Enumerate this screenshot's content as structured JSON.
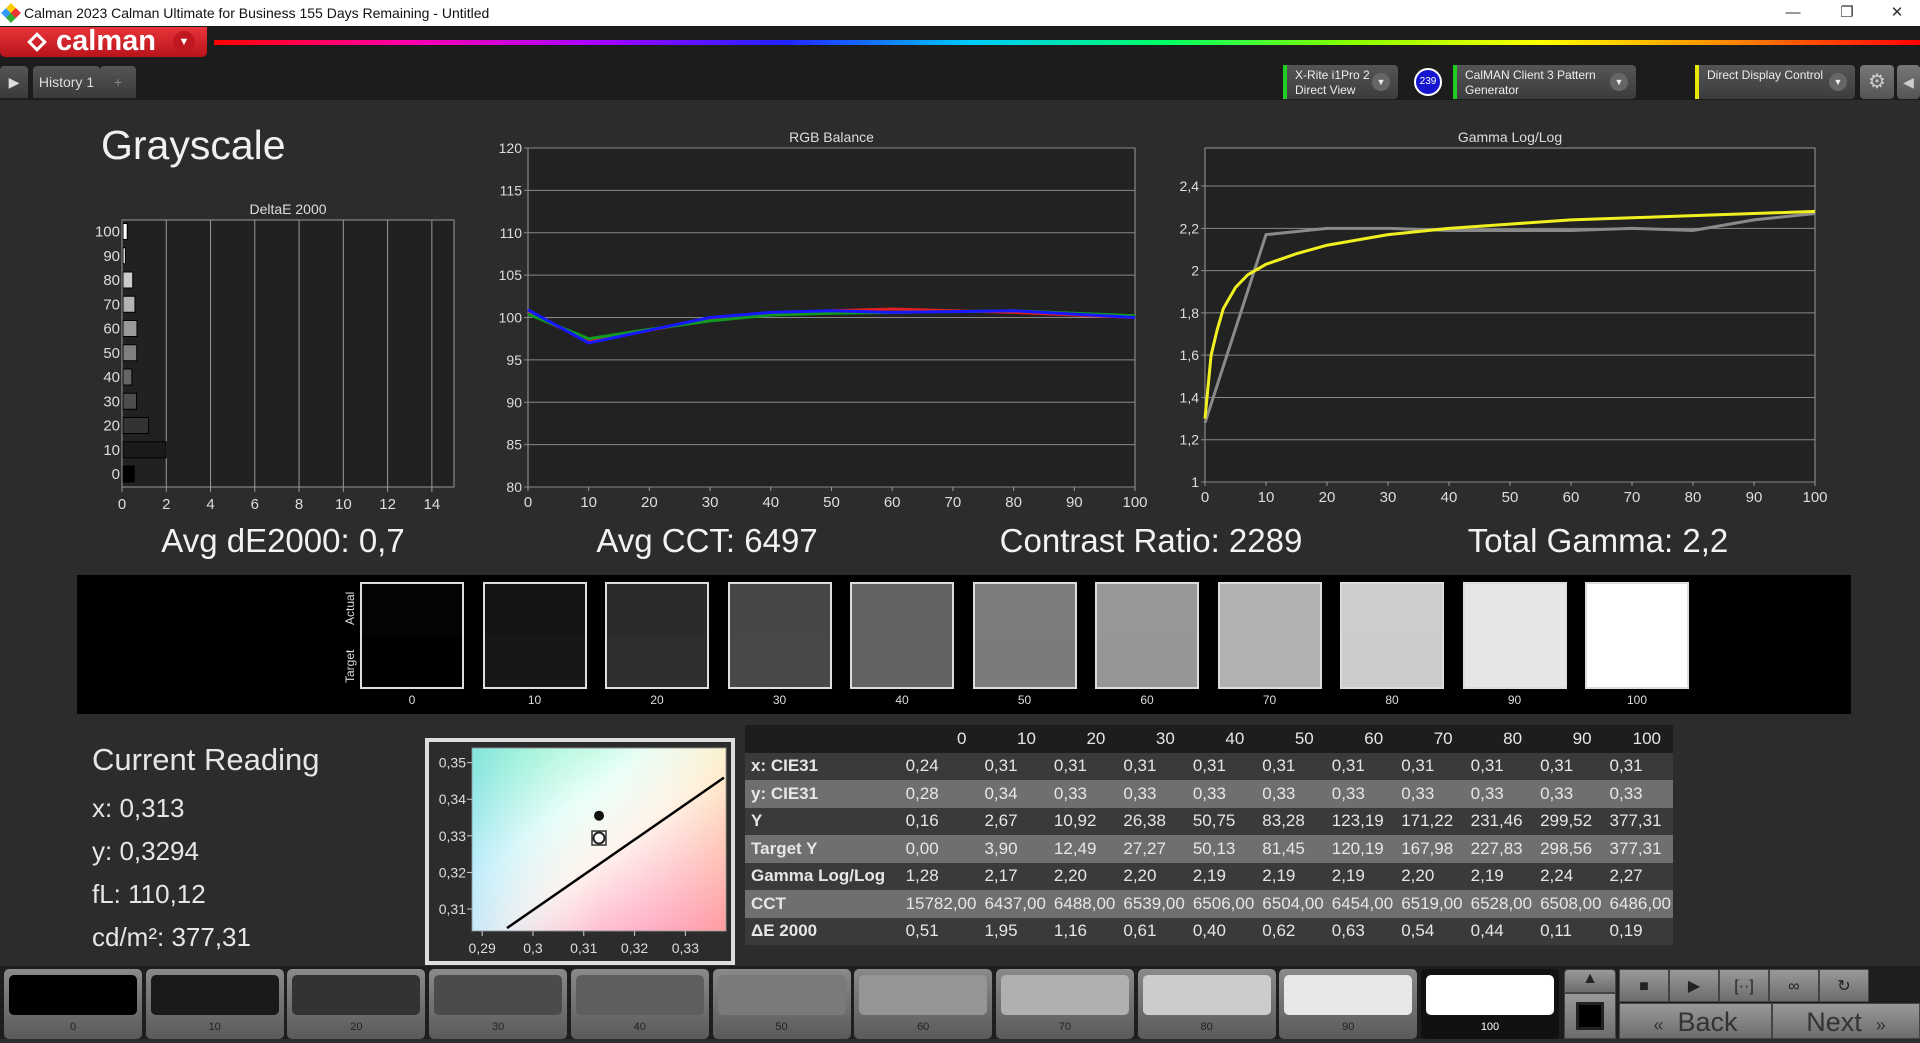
{
  "window": {
    "title": "Calman 2023 Calman Ultimate for Business 155 Days Remaining  - Untitled",
    "minimize": "—",
    "restore": "❐",
    "close": "✕"
  },
  "brand": {
    "name": "calman"
  },
  "tabs": {
    "items": [
      {
        "label": "History 1"
      }
    ],
    "add_label": "+"
  },
  "devices": {
    "meter": {
      "line1": "X-Rite i1Pro 2",
      "line2": "Direct View",
      "color": "#22cc22",
      "badge": "239"
    },
    "source": {
      "line1": "CalMAN Client 3 Pattern Generator",
      "color": "#22cc22"
    },
    "display": {
      "line1": "Direct Display Control",
      "color": "#e8e800"
    }
  },
  "page": {
    "title": "Grayscale"
  },
  "stats": {
    "avg_de": "Avg dE2000: 0,7",
    "avg_cct": "Avg CCT: 6497",
    "contrast": "Contrast Ratio: 2289",
    "gamma": "Total Gamma: 2,2"
  },
  "chart_data": [
    {
      "type": "bar",
      "orientation": "horizontal",
      "title": "DeltaE 2000",
      "categories": [
        "0",
        "10",
        "20",
        "30",
        "40",
        "50",
        "60",
        "70",
        "80",
        "90",
        "100"
      ],
      "values": [
        0.51,
        1.95,
        1.16,
        0.61,
        0.4,
        0.62,
        0.63,
        0.54,
        0.44,
        0.11,
        0.19
      ],
      "xlim": [
        0,
        15
      ],
      "xticks": [
        "0",
        "2",
        "4",
        "6",
        "8",
        "10",
        "12",
        "14"
      ],
      "grid": true
    },
    {
      "type": "line",
      "title": "RGB Balance",
      "x": [
        0,
        10,
        20,
        30,
        40,
        50,
        60,
        70,
        80,
        90,
        100
      ],
      "ylim": [
        80,
        120
      ],
      "xlim": [
        0,
        100
      ],
      "yticks": [
        "80",
        "85",
        "90",
        "95",
        "100",
        "105",
        "110",
        "115",
        "120"
      ],
      "xticks": [
        "0",
        "10",
        "20",
        "30",
        "40",
        "50",
        "60",
        "70",
        "80",
        "90",
        "100"
      ],
      "grid": true,
      "series": [
        {
          "color": "#e02020",
          "values": [
            100.5,
            97.3,
            98.5,
            99.8,
            100.5,
            100.8,
            101.0,
            100.8,
            100.6,
            100.3,
            100.0
          ]
        },
        {
          "color": "#109a20",
          "values": [
            100.4,
            97.5,
            98.6,
            99.6,
            100.3,
            100.5,
            100.6,
            100.7,
            100.8,
            100.5,
            100.2
          ]
        },
        {
          "color": "#1818ff",
          "values": [
            100.9,
            97.0,
            98.5,
            100.0,
            100.6,
            100.8,
            100.6,
            100.7,
            100.8,
            100.4,
            100.0
          ]
        }
      ]
    },
    {
      "type": "line",
      "title": "Gamma Log/Log",
      "xlim": [
        0,
        100
      ],
      "ylim": [
        1,
        2.58
      ],
      "yticks": [
        {
          "v": 1,
          "l": "1"
        },
        {
          "v": 1.2,
          "l": "1,2"
        },
        {
          "v": 1.4,
          "l": "1,4"
        },
        {
          "v": 1.6,
          "l": "1,6"
        },
        {
          "v": 1.8,
          "l": "1,8"
        },
        {
          "v": 2,
          "l": "2"
        },
        {
          "v": 2.2,
          "l": "2,2"
        },
        {
          "v": 2.4,
          "l": "2,4"
        }
      ],
      "xticks": [
        "0",
        "10",
        "20",
        "30",
        "40",
        "50",
        "60",
        "70",
        "80",
        "90",
        "100"
      ],
      "grid": true,
      "series": [
        {
          "color": "#8a8a8a",
          "x": [
            0,
            10,
            20,
            30,
            40,
            50,
            60,
            70,
            80,
            90,
            100
          ],
          "values": [
            1.28,
            2.17,
            2.2,
            2.2,
            2.19,
            2.19,
            2.19,
            2.2,
            2.19,
            2.24,
            2.27
          ]
        },
        {
          "color": "#f0f020",
          "x": [
            0,
            1,
            2,
            3,
            5,
            7,
            10,
            15,
            20,
            30,
            40,
            50,
            60,
            70,
            80,
            90,
            100
          ],
          "values": [
            1.3,
            1.6,
            1.72,
            1.82,
            1.92,
            1.98,
            2.03,
            2.08,
            2.12,
            2.17,
            2.2,
            2.22,
            2.24,
            2.25,
            2.26,
            2.27,
            2.28
          ]
        }
      ]
    },
    {
      "type": "scatter",
      "title": "",
      "xlim": [
        0.288,
        0.338
      ],
      "ylim": [
        0.304,
        0.354
      ],
      "xticks": [
        {
          "v": 0.29,
          "l": "0,29"
        },
        {
          "v": 0.3,
          "l": "0,3"
        },
        {
          "v": 0.31,
          "l": "0,31"
        },
        {
          "v": 0.32,
          "l": "0,32"
        },
        {
          "v": 0.33,
          "l": "0,33"
        }
      ],
      "yticks": [
        {
          "v": 0.31,
          "l": "0,31"
        },
        {
          "v": 0.32,
          "l": "0,32"
        },
        {
          "v": 0.33,
          "l": "0,33"
        },
        {
          "v": 0.34,
          "l": "0,34"
        },
        {
          "v": 0.35,
          "l": "0,35"
        }
      ],
      "points": [
        {
          "x": 0.313,
          "y": 0.3355,
          "kind": "filled"
        },
        {
          "x": 0.313,
          "y": 0.3294,
          "kind": "current"
        }
      ],
      "locus": [
        [
          0.2949,
          0.3048
        ],
        [
          0.3376,
          0.3459
        ]
      ]
    }
  ],
  "patches": {
    "actual_label": "Actual",
    "target_label": "Target",
    "items": [
      {
        "label": "0",
        "actual": "#040404",
        "target": "#000000"
      },
      {
        "label": "10",
        "actual": "#141414",
        "target": "#171717"
      },
      {
        "label": "20",
        "actual": "#2b2b2b",
        "target": "#2e2e2e"
      },
      {
        "label": "30",
        "actual": "#474747",
        "target": "#484848"
      },
      {
        "label": "40",
        "actual": "#626262",
        "target": "#626262"
      },
      {
        "label": "50",
        "actual": "#7c7c7c",
        "target": "#7b7b7b"
      },
      {
        "label": "60",
        "actual": "#979797",
        "target": "#969696"
      },
      {
        "label": "70",
        "actual": "#b2b2b2",
        "target": "#b1b1b1"
      },
      {
        "label": "80",
        "actual": "#cdcdcd",
        "target": "#cccccc"
      },
      {
        "label": "90",
        "actual": "#e6e6e6",
        "target": "#e6e6e6"
      },
      {
        "label": "100",
        "actual": "#ffffff",
        "target": "#ffffff"
      }
    ]
  },
  "current": {
    "title": "Current Reading",
    "x": "x: 0,313",
    "y": "y: 0,3294",
    "fl": "fL: 110,12",
    "cdm2": "cd/m²: 377,31"
  },
  "table": {
    "headers": [
      "",
      "0",
      "10",
      "20",
      "30",
      "40",
      "50",
      "60",
      "70",
      "80",
      "90",
      "100"
    ],
    "rows": [
      {
        "label": "x: CIE31",
        "values": [
          "0,24",
          "0,31",
          "0,31",
          "0,31",
          "0,31",
          "0,31",
          "0,31",
          "0,31",
          "0,31",
          "0,31",
          "0,31"
        ]
      },
      {
        "label": "y: CIE31",
        "values": [
          "0,28",
          "0,34",
          "0,33",
          "0,33",
          "0,33",
          "0,33",
          "0,33",
          "0,33",
          "0,33",
          "0,33",
          "0,33"
        ]
      },
      {
        "label": "Y",
        "values": [
          "0,16",
          "2,67",
          "10,92",
          "26,38",
          "50,75",
          "83,28",
          "123,19",
          "171,22",
          "231,46",
          "299,52",
          "377,31"
        ]
      },
      {
        "label": "Target Y",
        "values": [
          "0,00",
          "3,90",
          "12,49",
          "27,27",
          "50,13",
          "81,45",
          "120,19",
          "167,98",
          "227,83",
          "298,56",
          "377,31"
        ]
      },
      {
        "label": "Gamma Log/Log",
        "values": [
          "1,28",
          "2,17",
          "2,20",
          "2,20",
          "2,19",
          "2,19",
          "2,19",
          "2,20",
          "2,19",
          "2,24",
          "2,27"
        ]
      },
      {
        "label": "CCT",
        "values": [
          "15782,00",
          "6437,00",
          "6488,00",
          "6539,00",
          "6506,00",
          "6504,00",
          "6454,00",
          "6519,00",
          "6528,00",
          "6508,00",
          "6486,00"
        ]
      },
      {
        "label": "ΔE 2000",
        "values": [
          "0,51",
          "1,95",
          "1,16",
          "0,61",
          "0,40",
          "0,62",
          "0,63",
          "0,54",
          "0,44",
          "0,11",
          "0,19"
        ]
      }
    ]
  },
  "bottom": {
    "patch_buttons": [
      {
        "label": "0",
        "color": "#000000"
      },
      {
        "label": "10",
        "color": "#1a1a1a"
      },
      {
        "label": "20",
        "color": "#333333"
      },
      {
        "label": "30",
        "color": "#4b4b4b"
      },
      {
        "label": "40",
        "color": "#5e5e5e"
      },
      {
        "label": "50",
        "color": "#7a7a7a"
      },
      {
        "label": "60",
        "color": "#959595"
      },
      {
        "label": "70",
        "color": "#b0b0b0"
      },
      {
        "label": "80",
        "color": "#cccccc"
      },
      {
        "label": "90",
        "color": "#e8e8e8"
      },
      {
        "label": "100",
        "color": "#ffffff"
      }
    ],
    "selected": "100",
    "back": "Back",
    "next": "Next",
    "back_icon": "«",
    "next_icon": "»"
  }
}
